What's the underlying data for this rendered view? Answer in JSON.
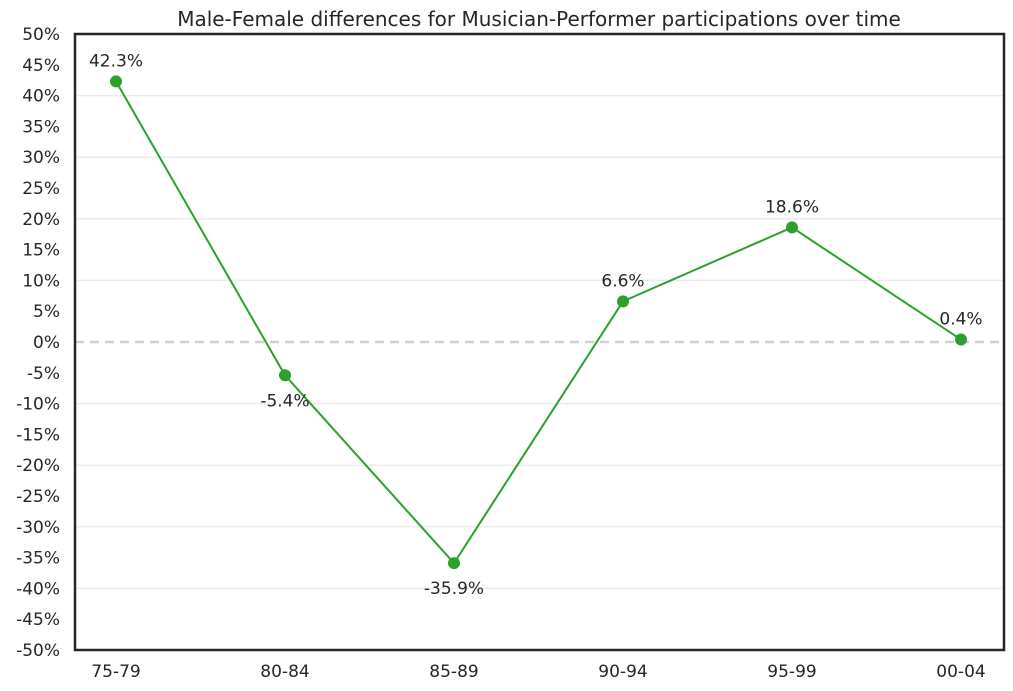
{
  "chart_data": {
    "type": "line",
    "title": "Male-Female differences for Musician-Performer participations over time",
    "xlabel": "",
    "ylabel": "",
    "categories": [
      "75-79",
      "80-84",
      "85-89",
      "90-94",
      "95-99",
      "00-04"
    ],
    "series": [
      {
        "values": [
          42.3,
          -5.4,
          -35.9,
          6.6,
          18.6,
          0.4
        ],
        "labels": [
          "42.3%",
          "-5.4%",
          "-35.9%",
          "6.6%",
          "18.6%",
          "0.4%"
        ]
      }
    ],
    "ylim": [
      -50,
      50
    ],
    "yticks": [
      50,
      45,
      40,
      35,
      30,
      25,
      20,
      15,
      10,
      5,
      0,
      -5,
      -10,
      -15,
      -20,
      -25,
      -30,
      -35,
      -40,
      -45,
      -50
    ],
    "ytick_format": "percent",
    "grid": "horizontal",
    "reference_line": {
      "y": 0,
      "style": "dashed"
    },
    "legend": "none",
    "colors": {
      "series": "#2ca02c",
      "grid": "#ebebeb",
      "reference": "#d0d0d0",
      "frame": "#262626",
      "text": "#262626"
    }
  }
}
